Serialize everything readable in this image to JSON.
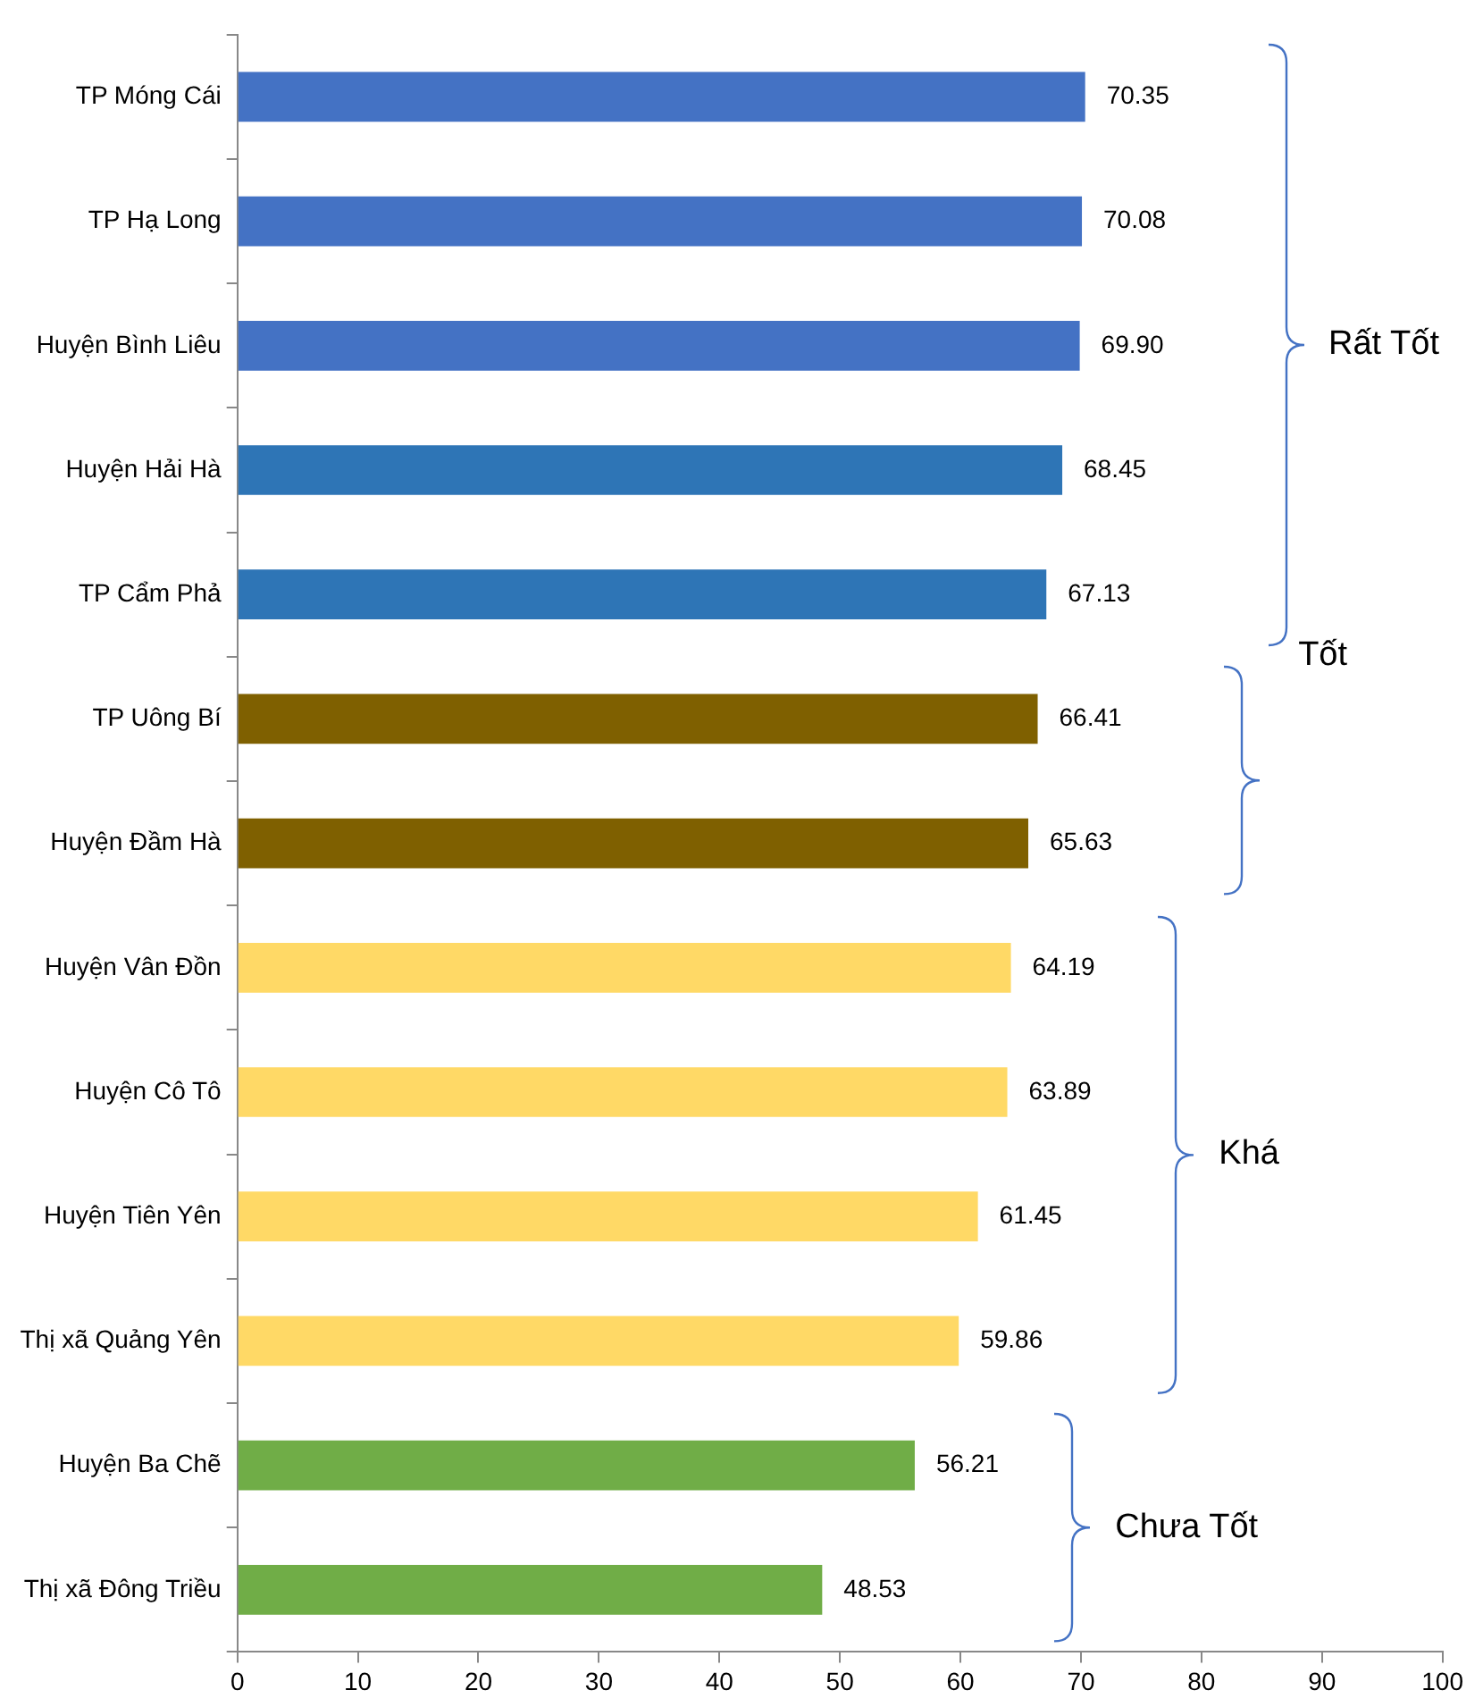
{
  "chart_data": {
    "type": "bar",
    "orientation": "horizontal",
    "categories": [
      "TP Móng Cái",
      "TP Hạ Long",
      "Huyện Bình Liêu",
      "Huyện Hải Hà",
      "TP Cẩm Phả",
      "TP Uông Bí",
      "Huyện Đầm Hà",
      "Huyện Vân Đồn",
      "Huyện Cô Tô",
      "Huyện Tiên Yên",
      "Thị xã Quảng Yên",
      "Huyện Ba Chẽ",
      "Thị xã Đông Triều"
    ],
    "values": [
      70.35,
      70.08,
      69.9,
      68.45,
      67.13,
      66.41,
      65.63,
      64.19,
      63.89,
      61.45,
      59.86,
      56.21,
      48.53
    ],
    "value_labels": [
      "70.35",
      "70.08",
      "69.90",
      "68.45",
      "67.13",
      "66.41",
      "65.63",
      "64.19",
      "63.89",
      "61.45",
      "59.86",
      "56.21",
      "48.53"
    ],
    "colors": [
      "#4472c4",
      "#4472c4",
      "#4472c4",
      "#2e75b6",
      "#2e75b6",
      "#7f6000",
      "#7f6000",
      "#ffd966",
      "#ffd966",
      "#ffd966",
      "#ffd966",
      "#70ad47",
      "#70ad47"
    ],
    "xlim": [
      0,
      100
    ],
    "xticks": [
      0,
      10,
      20,
      30,
      40,
      50,
      60,
      70,
      80,
      90,
      100
    ],
    "grid": false,
    "legend": false,
    "annotations": [
      "Rất Tốt",
      "Tốt",
      "Khá",
      "Chưa Tốt"
    ]
  }
}
